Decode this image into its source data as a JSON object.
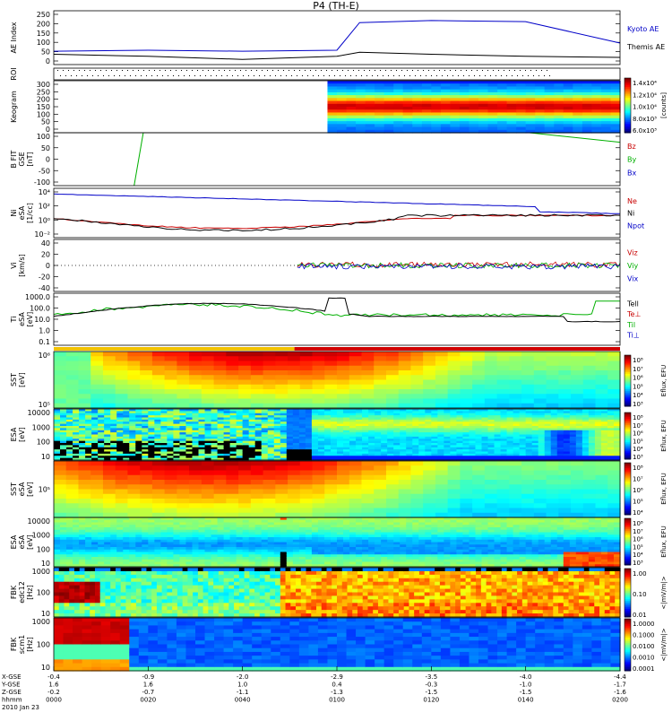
{
  "title": "P4 (TH-E)",
  "panels": [
    {
      "id": "ae",
      "ylabel": [
        "AE Index"
      ],
      "yticks": [
        "250",
        "200",
        "150",
        "100",
        "50",
        "0"
      ],
      "legend": [
        {
          "text": "Kyoto AE",
          "color": "#0000c8"
        },
        {
          "text": "Themis AE",
          "color": "#000000"
        }
      ]
    },
    {
      "id": "roi",
      "ylabel": [
        "ROI"
      ],
      "yticks": []
    },
    {
      "id": "kp",
      "ylabel": [
        "Keogram"
      ],
      "yticks": [
        "300",
        "250",
        "200",
        "150",
        "100",
        "50",
        "0"
      ],
      "colorbar": {
        "ticks": [
          "1.4x10⁴",
          "1.2x10⁴",
          "1.0x10⁴",
          "8.0x10³",
          "6.0x10³"
        ],
        "title": "[counts]"
      }
    },
    {
      "id": "bfit",
      "ylabel": [
        "B FIT",
        "GSE",
        "[nT]"
      ],
      "yticks": [
        "100",
        "50",
        "0",
        "-50",
        "-100"
      ],
      "legend": [
        {
          "text": "Bz",
          "color": "#c80000"
        },
        {
          "text": "By",
          "color": "#00b000"
        },
        {
          "text": "Bx",
          "color": "#0000c8"
        }
      ]
    },
    {
      "id": "ni",
      "ylabel": [
        "Ni",
        "eSA",
        "[1/cc]"
      ],
      "yticks": [
        "10⁴",
        "10²",
        "10⁰",
        "10⁻²"
      ],
      "legend": [
        {
          "text": "Ne",
          "color": "#c80000"
        },
        {
          "text": "Ni",
          "color": "#000000"
        },
        {
          "text": "Npot",
          "color": "#0000c8"
        }
      ]
    },
    {
      "id": "vi",
      "ylabel": [
        "Vi",
        "[km/s]"
      ],
      "yticks": [
        "40",
        "20",
        "0",
        "-20",
        "-40"
      ],
      "legend": [
        {
          "text": "Viz",
          "color": "#c80000"
        },
        {
          "text": "Viy",
          "color": "#00b000"
        },
        {
          "text": "Vix",
          "color": "#0000c8"
        }
      ]
    },
    {
      "id": "ti",
      "ylabel": [
        "Ti",
        "eSA",
        "[eV]"
      ],
      "yticks": [
        "1000.0",
        "100.0",
        "10.0",
        "1.0",
        "0.1"
      ],
      "legend": [
        {
          "text": "Tell",
          "color": "#000000"
        },
        {
          "text": "Te⊥",
          "color": "#c80000"
        },
        {
          "text": "Til",
          "color": "#00b000"
        },
        {
          "text": "Ti⊥",
          "color": "#0000c8"
        }
      ]
    },
    {
      "id": "sst1",
      "ylabel": [
        "SST",
        "[eV]"
      ],
      "yticks": [
        "10⁶",
        "10⁵"
      ],
      "colorbar": {
        "ticks": [
          "10⁸",
          "10⁷",
          "10⁶",
          "10⁵",
          "10⁴",
          "10³"
        ],
        "title": "Eflux, EFU"
      }
    },
    {
      "id": "esa1",
      "ylabel": [
        "ESA",
        "[eV]"
      ],
      "yticks": [
        "10000",
        "1000",
        "100",
        "10"
      ],
      "colorbar": {
        "ticks": [
          "10⁸",
          "10⁷",
          "10⁶",
          "10⁵",
          "10⁴",
          "10³"
        ],
        "title": "Eflux, EFU"
      }
    },
    {
      "id": "sst2",
      "ylabel": [
        "SST",
        "eSA",
        "[eV]"
      ],
      "yticks": [
        "10⁵"
      ],
      "colorbar": {
        "ticks": [
          "10⁸",
          "10⁷",
          "10⁶",
          "10⁵",
          "10⁴"
        ],
        "title": "Eflux, EFU"
      }
    },
    {
      "id": "esa2",
      "ylabel": [
        "ESA",
        "eSA",
        "[eV]"
      ],
      "yticks": [
        "10000",
        "1000",
        "100",
        "10"
      ],
      "colorbar": {
        "ticks": [
          "10⁸",
          "10⁷",
          "10⁶",
          "10⁵",
          "10⁴",
          "10³"
        ],
        "title": "Eflux, EFU"
      }
    },
    {
      "id": "fbk1",
      "ylabel": [
        "FBK",
        "edc12",
        "[Hz]"
      ],
      "yticks": [
        "1000",
        "100",
        "10"
      ],
      "colorbar": {
        "ticks": [
          "1.00",
          "0.10",
          "0.01"
        ],
        "title": "<|mV/m|>"
      }
    },
    {
      "id": "fbk2",
      "ylabel": [
        "FBK",
        "scm1",
        "[Hz]"
      ],
      "yticks": [
        "1000",
        "100",
        "10"
      ],
      "colorbar": {
        "ticks": [
          "1.0000",
          "0.1000",
          "0.0100",
          "0.0010",
          "0.0001"
        ],
        "title": "<|mV/m|>"
      }
    }
  ],
  "xaxis": {
    "row_labels": [
      "X-GSE",
      "Y-GSE",
      "Z-GSE",
      "hhmm",
      "2010 Jan 23"
    ],
    "ticks": [
      {
        "x": "-0.4",
        "y": "1.6",
        "z": "-0.2",
        "t": "0000"
      },
      {
        "x": "-0.9",
        "y": "1.6",
        "z": "-0.7",
        "t": "0020"
      },
      {
        "x": "-2.0",
        "y": "1.0",
        "z": "-1.1",
        "t": "0040"
      },
      {
        "x": "-2.9",
        "y": "0.4",
        "z": "-1.3",
        "t": "0100"
      },
      {
        "x": "-3.5",
        "y": "-0.3",
        "z": "-1.5",
        "t": "0120"
      },
      {
        "x": "-4.0",
        "y": "-1.0",
        "z": "-1.5",
        "t": "0140"
      },
      {
        "x": "-4.4",
        "y": "-1.7",
        "z": "-1.6",
        "t": "0200"
      }
    ]
  },
  "chart_data": [
    {
      "type": "line",
      "panel": "ae",
      "x_hhmm": [
        "0000",
        "0020",
        "0040",
        "0100",
        "0105",
        "0120",
        "0140",
        "0200"
      ],
      "series": [
        {
          "name": "Kyoto AE",
          "values": [
            60,
            65,
            60,
            65,
            200,
            210,
            205,
            100
          ]
        },
        {
          "name": "Themis AE",
          "values": [
            45,
            35,
            20,
            35,
            55,
            45,
            35,
            30
          ]
        }
      ],
      "ylim": [
        0,
        250
      ]
    },
    {
      "type": "heatmap",
      "panel": "kp",
      "note": "data begins ~0053",
      "ylim": [
        0,
        300
      ]
    },
    {
      "type": "line",
      "panel": "bfit",
      "series": [
        {
          "name": "By",
          "values": [
            -100,
            100,
            100,
            70
          ]
        }
      ],
      "ylim": [
        -100,
        100
      ]
    },
    {
      "type": "line",
      "panel": "ni",
      "series": [
        {
          "name": "Npot",
          "values": [
            1000,
            900,
            500,
            400,
            300,
            200,
            100
          ]
        },
        {
          "name": "Ni",
          "values": [
            1,
            0.3,
            0.1,
            0.2,
            0.3,
            0.5,
            1
          ]
        },
        {
          "name": "Ne",
          "values": [
            1,
            0.5,
            0.2,
            0.2,
            0.3,
            0.5,
            1
          ]
        }
      ]
    },
    {
      "type": "line",
      "panel": "vi",
      "series": [
        {
          "name": "Viz",
          "values": [
            0,
            0,
            0
          ]
        },
        {
          "name": "Viy",
          "values": [
            0,
            0,
            0
          ]
        },
        {
          "name": "Vix",
          "values": [
            0,
            0,
            0
          ]
        }
      ],
      "ylim": [
        -40,
        40
      ]
    },
    {
      "type": "line",
      "panel": "ti",
      "series": [
        {
          "name": "Tell",
          "values": [
            150,
            500,
            1000,
            1000,
            1000,
            50
          ]
        },
        {
          "name": "Til",
          "values": [
            70,
            300,
            600,
            1000,
            400,
            1000
          ]
        }
      ]
    }
  ]
}
